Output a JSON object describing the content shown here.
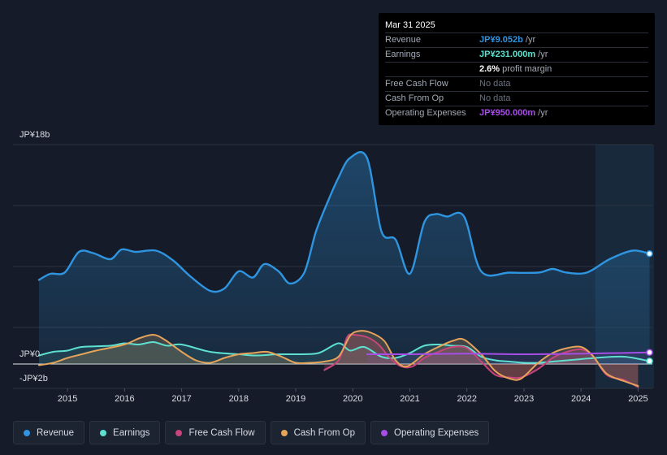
{
  "tooltip": {
    "date": "Mar 31 2025",
    "rows": [
      {
        "label": "Revenue",
        "value": "JP¥9.052b",
        "unit": " /yr",
        "color": "#2f95e0"
      },
      {
        "label": "Earnings",
        "value": "JP¥231.000m",
        "unit": " /yr",
        "color": "#5de0cf"
      },
      {
        "label": "",
        "value": "2.6%",
        "unit": " profit margin",
        "color": "#ffffff"
      },
      {
        "label": "Free Cash Flow",
        "value": "No data",
        "unit": "",
        "color": "#6b7180"
      },
      {
        "label": "Cash From Op",
        "value": "No data",
        "unit": "",
        "color": "#6b7180"
      },
      {
        "label": "Operating Expenses",
        "value": "JP¥950.000m",
        "unit": " /yr",
        "color": "#a64ee6"
      }
    ]
  },
  "legend": [
    {
      "label": "Revenue",
      "color": "#2f95e0"
    },
    {
      "label": "Earnings",
      "color": "#5de0cf"
    },
    {
      "label": "Free Cash Flow",
      "color": "#c7457a"
    },
    {
      "label": "Cash From Op",
      "color": "#e6a35a"
    },
    {
      "label": "Operating Expenses",
      "color": "#a64ee6"
    }
  ],
  "chart_data": {
    "type": "area",
    "title": "",
    "y_unit_labels": {
      "top": "JP¥18b",
      "zero": "JP¥0",
      "bottom": "-JP¥2b"
    },
    "ylim": [
      -2,
      18
    ],
    "xlim": [
      2014.5,
      2025.25
    ],
    "x_ticks": [
      "2015",
      "2016",
      "2017",
      "2018",
      "2019",
      "2020",
      "2021",
      "2022",
      "2023",
      "2024",
      "2025"
    ],
    "x_tick_values": [
      2015,
      2016,
      2017,
      2018,
      2019,
      2020,
      2021,
      2022,
      2023,
      2024,
      2025
    ],
    "highlight_start": 2024.25,
    "series": [
      {
        "name": "Revenue",
        "color": "#2f95e0",
        "points": [
          [
            2014.5,
            6.9
          ],
          [
            2014.7,
            7.4
          ],
          [
            2014.95,
            7.5
          ],
          [
            2015.2,
            9.2
          ],
          [
            2015.45,
            9.1
          ],
          [
            2015.75,
            8.6
          ],
          [
            2015.95,
            9.4
          ],
          [
            2016.2,
            9.2
          ],
          [
            2016.55,
            9.3
          ],
          [
            2016.85,
            8.5
          ],
          [
            2017.15,
            7.2
          ],
          [
            2017.5,
            6.0
          ],
          [
            2017.75,
            6.2
          ],
          [
            2018.0,
            7.6
          ],
          [
            2018.25,
            7.1
          ],
          [
            2018.45,
            8.2
          ],
          [
            2018.7,
            7.6
          ],
          [
            2018.9,
            6.6
          ],
          [
            2019.15,
            7.5
          ],
          [
            2019.35,
            10.8
          ],
          [
            2019.55,
            13.2
          ],
          [
            2019.75,
            15.3
          ],
          [
            2019.95,
            16.9
          ],
          [
            2020.25,
            16.9
          ],
          [
            2020.5,
            10.9
          ],
          [
            2020.75,
            10.2
          ],
          [
            2021.0,
            7.4
          ],
          [
            2021.25,
            11.6
          ],
          [
            2021.45,
            12.3
          ],
          [
            2021.65,
            12.1
          ],
          [
            2021.95,
            12.1
          ],
          [
            2022.25,
            7.6
          ],
          [
            2022.75,
            7.5
          ],
          [
            2023.25,
            7.5
          ],
          [
            2023.5,
            7.8
          ],
          [
            2023.75,
            7.5
          ],
          [
            2024.1,
            7.5
          ],
          [
            2024.5,
            8.6
          ],
          [
            2024.9,
            9.3
          ],
          [
            2025.2,
            9.052
          ]
        ]
      },
      {
        "name": "Earnings",
        "color": "#5de0cf",
        "points": [
          [
            2014.5,
            0.7
          ],
          [
            2014.75,
            1.0
          ],
          [
            2015.0,
            1.1
          ],
          [
            2015.25,
            1.4
          ],
          [
            2015.75,
            1.5
          ],
          [
            2016.0,
            1.7
          ],
          [
            2016.25,
            1.6
          ],
          [
            2016.5,
            1.8
          ],
          [
            2016.75,
            1.5
          ],
          [
            2017.0,
            1.6
          ],
          [
            2017.5,
            1.0
          ],
          [
            2018.0,
            0.8
          ],
          [
            2018.3,
            0.7
          ],
          [
            2018.7,
            0.8
          ],
          [
            2019.0,
            0.8
          ],
          [
            2019.4,
            0.9
          ],
          [
            2019.75,
            1.7
          ],
          [
            2019.95,
            1.1
          ],
          [
            2020.2,
            1.4
          ],
          [
            2020.5,
            0.6
          ],
          [
            2020.75,
            0.5
          ],
          [
            2021.0,
            0.9
          ],
          [
            2021.25,
            1.5
          ],
          [
            2021.5,
            1.6
          ],
          [
            2021.75,
            1.5
          ],
          [
            2022.0,
            1.4
          ],
          [
            2022.25,
            0.6
          ],
          [
            2022.5,
            0.3
          ],
          [
            2022.75,
            0.2
          ],
          [
            2023.0,
            0.1
          ],
          [
            2023.25,
            0.1
          ],
          [
            2023.5,
            0.2
          ],
          [
            2023.75,
            0.3
          ],
          [
            2024.0,
            0.4
          ],
          [
            2024.25,
            0.5
          ],
          [
            2024.75,
            0.6
          ],
          [
            2025.2,
            0.231
          ]
        ]
      },
      {
        "name": "Free Cash Flow",
        "color": "#c7457a",
        "points": [
          [
            2019.5,
            -0.5
          ],
          [
            2019.75,
            0.3
          ],
          [
            2019.9,
            2.2
          ],
          [
            2020.0,
            2.4
          ],
          [
            2020.25,
            2.2
          ],
          [
            2020.45,
            1.6
          ],
          [
            2020.65,
            0.5
          ],
          [
            2020.85,
            -0.2
          ],
          [
            2021.05,
            -0.2
          ],
          [
            2021.25,
            0.5
          ],
          [
            2021.5,
            1.0
          ],
          [
            2021.75,
            1.4
          ],
          [
            2022.0,
            1.3
          ],
          [
            2022.25,
            0.2
          ],
          [
            2022.5,
            -0.9
          ],
          [
            2022.75,
            -1.1
          ],
          [
            2022.95,
            -1.1
          ],
          [
            2023.25,
            -0.4
          ],
          [
            2023.5,
            0.5
          ],
          [
            2023.75,
            1.0
          ],
          [
            2024.0,
            1.2
          ],
          [
            2024.2,
            0.7
          ],
          [
            2024.45,
            -0.9
          ],
          [
            2024.75,
            -1.3
          ],
          [
            2025.0,
            -1.9
          ]
        ]
      },
      {
        "name": "Cash From Op",
        "color": "#e6a35a",
        "points": [
          [
            2014.5,
            -0.1
          ],
          [
            2014.75,
            0.1
          ],
          [
            2015.0,
            0.5
          ],
          [
            2015.25,
            0.8
          ],
          [
            2015.5,
            1.1
          ],
          [
            2016.0,
            1.6
          ],
          [
            2016.25,
            2.1
          ],
          [
            2016.5,
            2.4
          ],
          [
            2016.7,
            2.0
          ],
          [
            2017.0,
            1.0
          ],
          [
            2017.25,
            0.3
          ],
          [
            2017.5,
            0.1
          ],
          [
            2017.75,
            0.5
          ],
          [
            2018.0,
            0.8
          ],
          [
            2018.25,
            0.9
          ],
          [
            2018.5,
            1.0
          ],
          [
            2018.75,
            0.6
          ],
          [
            2019.0,
            0.1
          ],
          [
            2019.25,
            0.1
          ],
          [
            2019.5,
            0.2
          ],
          [
            2019.75,
            0.6
          ],
          [
            2019.95,
            2.3
          ],
          [
            2020.1,
            2.7
          ],
          [
            2020.3,
            2.6
          ],
          [
            2020.55,
            1.9
          ],
          [
            2020.75,
            0.3
          ],
          [
            2020.95,
            -0.2
          ],
          [
            2021.25,
            0.8
          ],
          [
            2021.5,
            1.4
          ],
          [
            2021.75,
            1.9
          ],
          [
            2021.95,
            2.0
          ],
          [
            2022.25,
            0.8
          ],
          [
            2022.5,
            -0.6
          ],
          [
            2022.75,
            -1.2
          ],
          [
            2022.95,
            -1.2
          ],
          [
            2023.25,
            0.1
          ],
          [
            2023.5,
            0.9
          ],
          [
            2023.75,
            1.3
          ],
          [
            2024.0,
            1.4
          ],
          [
            2024.2,
            0.7
          ],
          [
            2024.45,
            -0.8
          ],
          [
            2024.75,
            -1.4
          ],
          [
            2025.0,
            -1.8
          ]
        ]
      },
      {
        "name": "Operating Expenses",
        "color": "#a64ee6",
        "points": [
          [
            2020.25,
            0.8
          ],
          [
            2021.0,
            0.8
          ],
          [
            2022.0,
            0.85
          ],
          [
            2023.0,
            0.8
          ],
          [
            2024.0,
            0.85
          ],
          [
            2025.2,
            0.95
          ]
        ]
      }
    ]
  }
}
